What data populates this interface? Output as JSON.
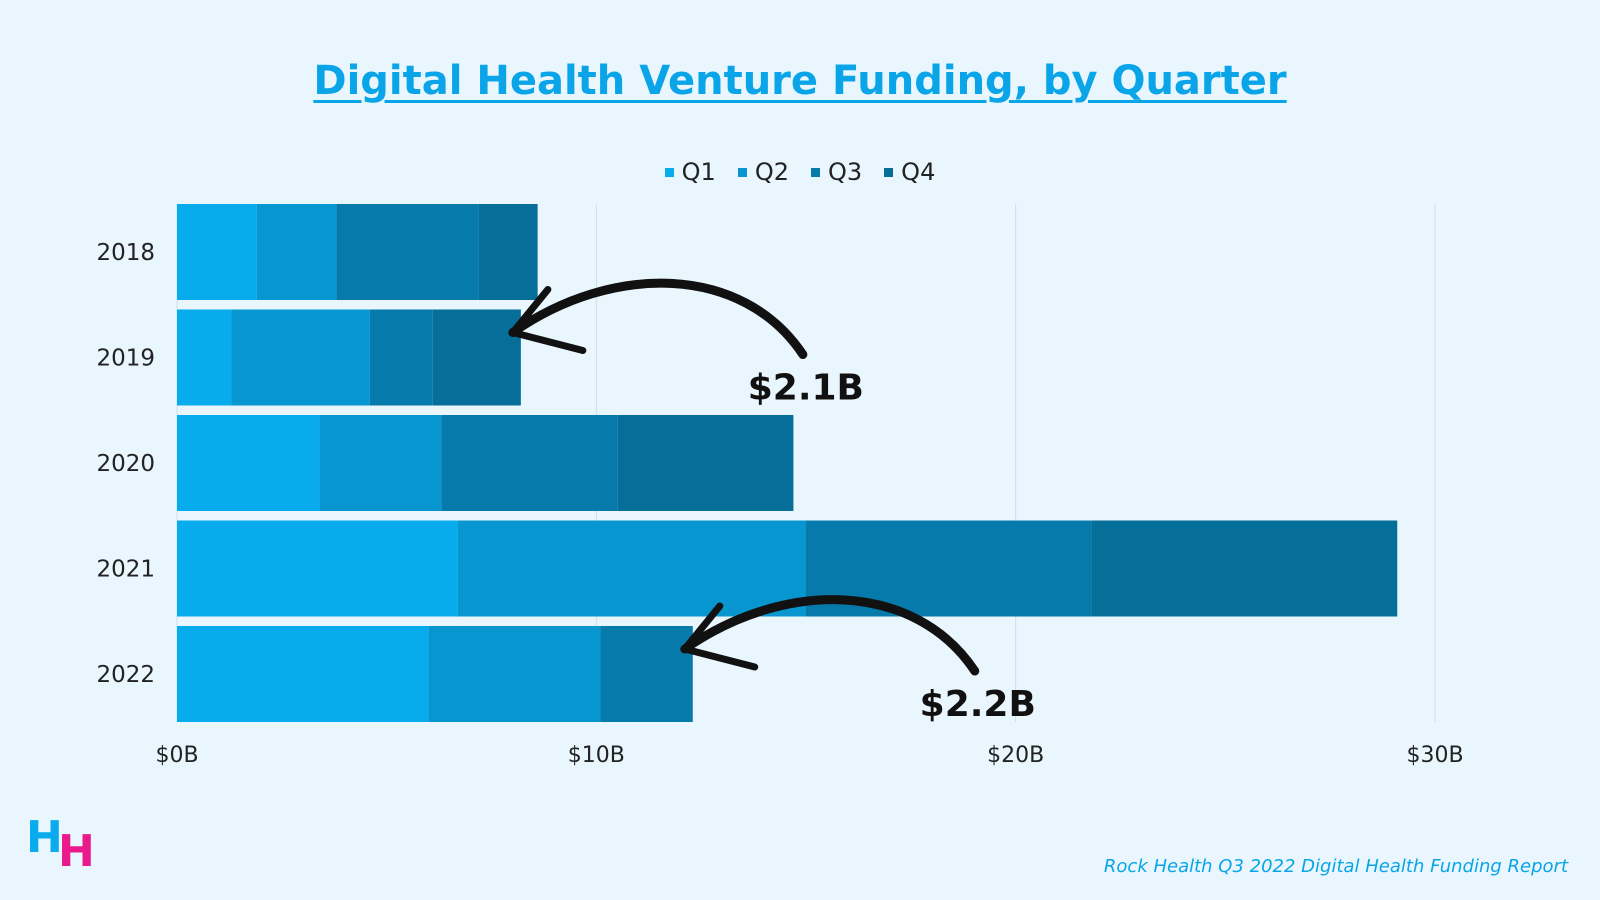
{
  "title": "Digital Health Venture Funding, by Quarter",
  "source": "Rock Health Q3 2022 Digital Health Funding Report",
  "logo": "HH",
  "chart_data": {
    "type": "bar",
    "orientation": "horizontal",
    "stacked": true,
    "title": "Digital Health Venture Funding, by Quarter",
    "categories": [
      "2018",
      "2019",
      "2020",
      "2021",
      "2022"
    ],
    "series": [
      {
        "name": "Q1",
        "color": "#08acec",
        "values": [
          1.9,
          1.3,
          3.4,
          6.7,
          6.0
        ]
      },
      {
        "name": "Q2",
        "color": "#0796d0",
        "values": [
          1.9,
          3.3,
          2.9,
          8.3,
          4.1
        ]
      },
      {
        "name": "Q3",
        "color": "#067aaa",
        "values": [
          3.4,
          1.5,
          4.2,
          6.8,
          2.2
        ]
      },
      {
        "name": "Q4",
        "color": "#056f99",
        "values": [
          1.4,
          2.1,
          4.2,
          7.3,
          null
        ]
      }
    ],
    "xlim": [
      0,
      30
    ],
    "xticks": [
      {
        "value": 0,
        "label": "$0B"
      },
      {
        "value": 10,
        "label": "$10B"
      },
      {
        "value": 20,
        "label": "$20B"
      },
      {
        "value": 30,
        "label": "$30B"
      }
    ],
    "grid": true,
    "legend_position": "top",
    "annotations": [
      {
        "text": "$2.1B",
        "category": "2019",
        "series": "Q4"
      },
      {
        "text": "$2.2B",
        "category": "2022",
        "series": "Q3"
      }
    ]
  }
}
